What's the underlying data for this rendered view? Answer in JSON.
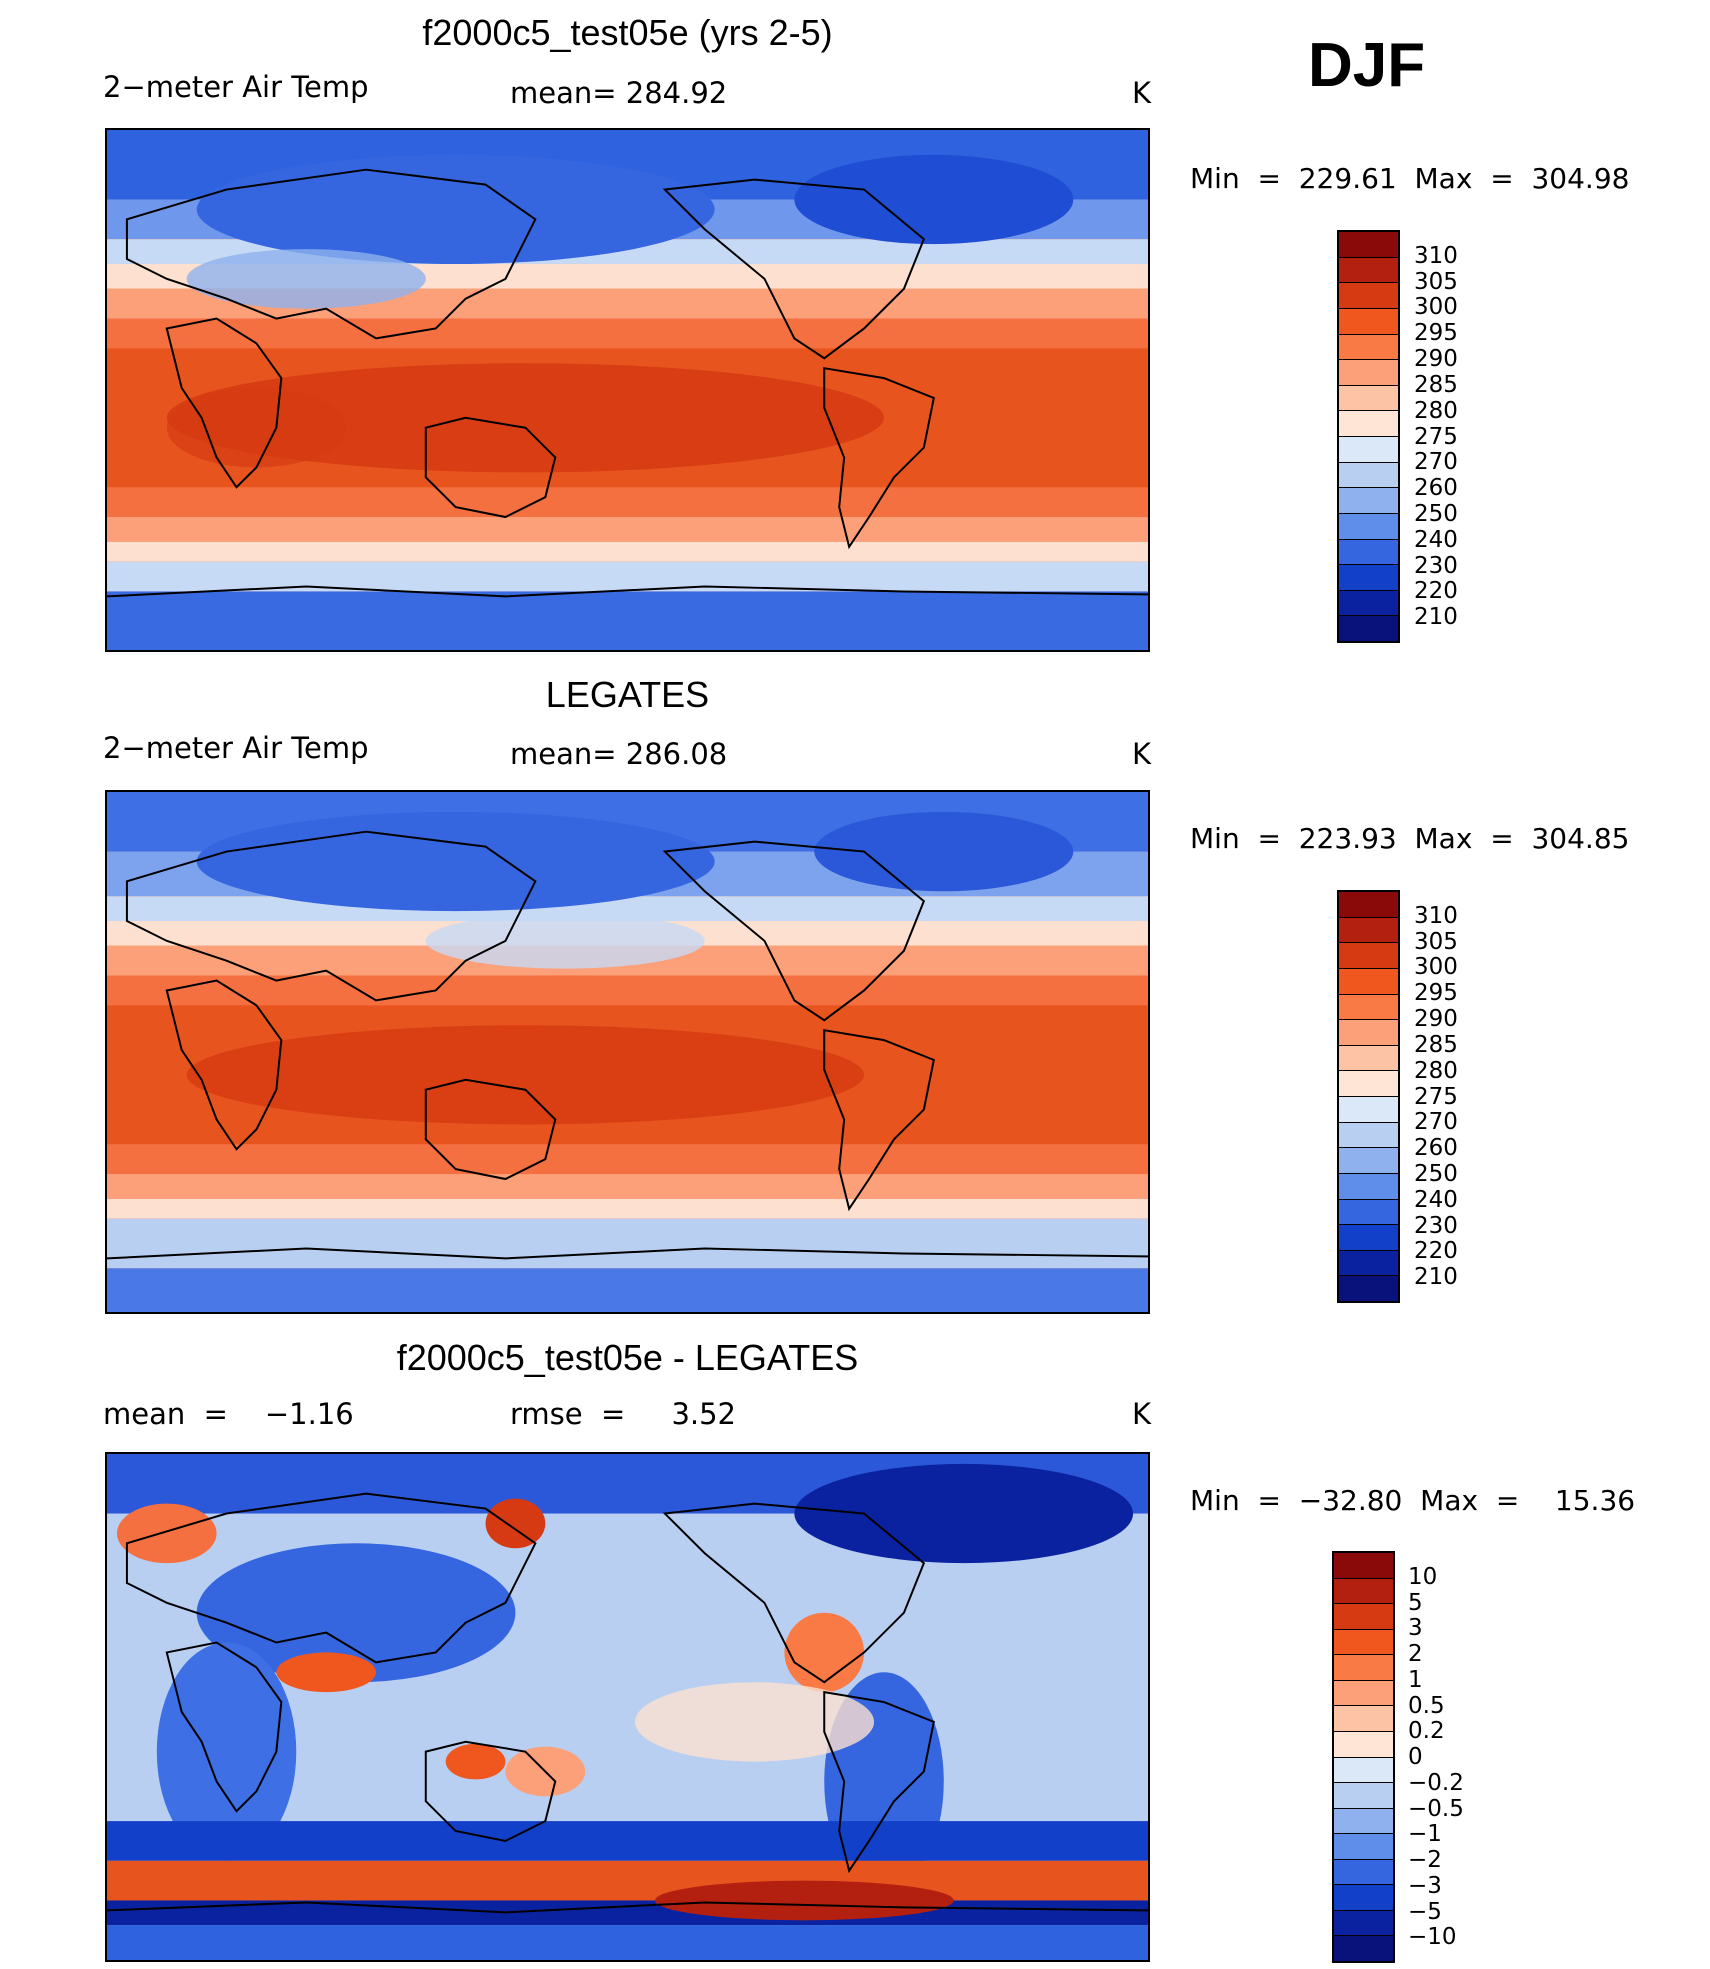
{
  "header": {
    "season": "DJF"
  },
  "panels": [
    {
      "title": "f2000c5_test05e (yrs 2-5)",
      "variable": "2−meter Air Temp",
      "mean_text": "mean= 284.92",
      "units": "K",
      "minmax": "Min  =  229.61  Max  =  304.98"
    },
    {
      "title": "LEGATES",
      "variable": "2−meter Air Temp",
      "mean_text": "mean= 286.08",
      "units": "K",
      "minmax": "Min  =  223.93  Max  =  304.85"
    },
    {
      "title": "f2000c5_test05e - LEGATES",
      "variable": "mean  =    −1.16",
      "mean_text": "rmse  =     3.52",
      "units": "K",
      "minmax": "Min  =  −32.80  Max  =    15.36"
    }
  ],
  "colorbars": {
    "temp": {
      "labels": [
        "310",
        "305",
        "300",
        "295",
        "290",
        "285",
        "280",
        "275",
        "270",
        "260",
        "250",
        "240",
        "230",
        "220",
        "210"
      ],
      "colors": [
        "#8a0a0a",
        "#b32010",
        "#d63a12",
        "#f0571e",
        "#fa7a45",
        "#fca07a",
        "#fdc3a5",
        "#fee5d5",
        "#dbe8f8",
        "#b8cff2",
        "#8fb2ee",
        "#5f8eea",
        "#3566e0",
        "#1340c8",
        "#0a22a0",
        "#08127a"
      ]
    },
    "diff": {
      "labels": [
        "10",
        "5",
        "3",
        "2",
        "1",
        "0.5",
        "0.2",
        "0",
        "−0.2",
        "−0.5",
        "−1",
        "−2",
        "−3",
        "−5",
        "−10"
      ],
      "colors": [
        "#8a0a0a",
        "#b32010",
        "#d63a12",
        "#f0571e",
        "#fa7a45",
        "#fca07a",
        "#fdc3a5",
        "#fee5d5",
        "#dbe8f8",
        "#b8cff2",
        "#8fb2ee",
        "#5f8eea",
        "#3566e0",
        "#1340c8",
        "#0a22a0",
        "#08127a"
      ]
    }
  }
}
